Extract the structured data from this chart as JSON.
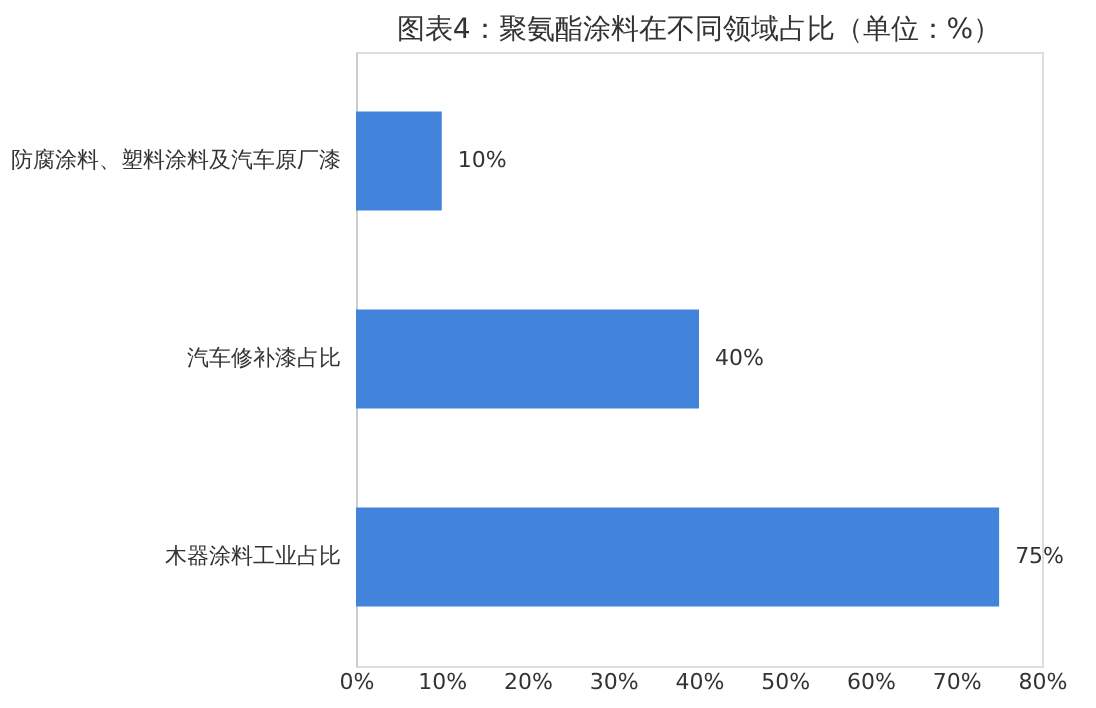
{
  "chart_data": {
    "type": "bar",
    "orientation": "horizontal",
    "title": "图表4：聚氨酯涂料在不同领域占比（单位：%）",
    "categories": [
      "防腐涂料、塑料涂料及汽车原厂漆",
      "汽车修补漆占比",
      "木器涂料工业占比"
    ],
    "values": [
      10,
      40,
      75
    ],
    "color": "#4283dc",
    "value_labels": [
      "10%",
      "40%",
      "75%"
    ],
    "xlim": [
      0,
      80
    ],
    "xticks": [
      {
        "value": 0,
        "label": "0%"
      },
      {
        "value": 10,
        "label": "10%"
      },
      {
        "value": 20,
        "label": "20%"
      },
      {
        "value": 30,
        "label": "30%"
      },
      {
        "value": 40,
        "label": "40%"
      },
      {
        "value": 50,
        "label": "50%"
      },
      {
        "value": 60,
        "label": "60%"
      },
      {
        "value": 70,
        "label": "70%"
      },
      {
        "value": 80,
        "label": "80%"
      }
    ],
    "grid": false
  }
}
